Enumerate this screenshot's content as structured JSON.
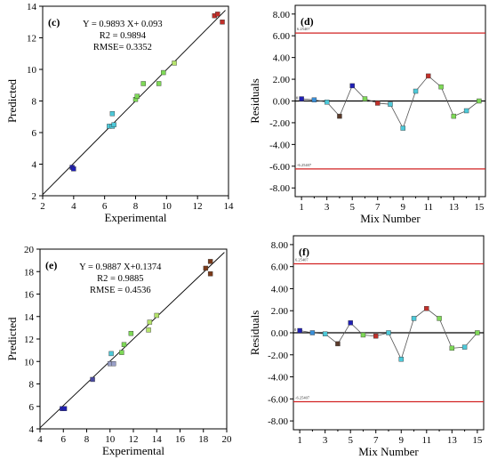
{
  "chart_data": [
    {
      "panel": "(c)",
      "type": "scatter",
      "xlabel": "Experimental",
      "ylabel": "Predicted",
      "xlim": [
        2,
        14
      ],
      "ylim": [
        2,
        14
      ],
      "xticks": [
        "2",
        "4",
        "6",
        "8",
        "10",
        "12",
        "14"
      ],
      "yticks": [
        "2",
        "4",
        "6",
        "8",
        "10",
        "12",
        "14"
      ],
      "annotations": [
        "Y = 0.9893 X+ 0.093",
        "R2 = 0.9894",
        "RMSE= 0.3352"
      ],
      "fit_line": {
        "slope": 0.9893,
        "intercept": 0.093
      },
      "points": [
        {
          "x": 3.9,
          "y": 3.8,
          "color": "#1f1fb4"
        },
        {
          "x": 4.0,
          "y": 3.7,
          "color": "#1f1fb4"
        },
        {
          "x": 6.3,
          "y": 6.4,
          "color": "#4dc9d9"
        },
        {
          "x": 6.5,
          "y": 6.4,
          "color": "#4dc9d9"
        },
        {
          "x": 6.6,
          "y": 6.5,
          "color": "#4dc9d9"
        },
        {
          "x": 6.5,
          "y": 7.2,
          "color": "#4dc9d9"
        },
        {
          "x": 8.0,
          "y": 8.1,
          "color": "#7ed957"
        },
        {
          "x": 8.1,
          "y": 8.3,
          "color": "#7ed957"
        },
        {
          "x": 8.5,
          "y": 9.1,
          "color": "#7ed957"
        },
        {
          "x": 9.5,
          "y": 9.1,
          "color": "#7ed957"
        },
        {
          "x": 9.8,
          "y": 9.8,
          "color": "#7ed957"
        },
        {
          "x": 10.5,
          "y": 10.4,
          "color": "#b5e36b"
        },
        {
          "x": 13.1,
          "y": 13.4,
          "color": "#c0302a"
        },
        {
          "x": 13.3,
          "y": 13.5,
          "color": "#c0302a"
        },
        {
          "x": 13.6,
          "y": 13.0,
          "color": "#c0302a"
        }
      ]
    },
    {
      "panel": "(d)",
      "type": "line",
      "xlabel": "Mix Number",
      "ylabel": "Residuals",
      "xlim": [
        0.5,
        15.5
      ],
      "ylim": [
        -8.8,
        8.8
      ],
      "xticks": [
        "1",
        "3",
        "5",
        "7",
        "9",
        "11",
        "13",
        "15"
      ],
      "yticks": [
        "8.00",
        "6.00",
        "4.00",
        "2.00",
        "0.00",
        "-2.00",
        "-4.00",
        "-6.00",
        "-8.00"
      ],
      "limits": [
        {
          "value": 6.25407,
          "label": "6.25407"
        },
        {
          "value": -6.25407,
          "label": "-6.25407"
        }
      ],
      "zero_label": "0",
      "x": [
        1,
        2,
        3,
        4,
        5,
        6,
        7,
        8,
        9,
        10,
        11,
        12,
        13,
        14,
        15
      ],
      "values": [
        0.2,
        0.1,
        -0.1,
        -1.4,
        1.4,
        0.2,
        -0.2,
        -0.3,
        -2.5,
        0.9,
        2.3,
        1.3,
        -1.4,
        -0.9,
        0.0
      ],
      "colors": [
        "#1f1fb4",
        "#3a8fd8",
        "#4dc9d9",
        "#5a3a2a",
        "#1f1fb4",
        "#7ed957",
        "#c0302a",
        "#4dc9d9",
        "#4dc9d9",
        "#4dc9d9",
        "#c0302a",
        "#7ed957",
        "#7ed957",
        "#4dc9d9",
        "#7ed957"
      ]
    },
    {
      "panel": "(e)",
      "type": "scatter",
      "xlabel": "Experimental",
      "ylabel": "Predicted",
      "xlim": [
        4,
        20
      ],
      "ylim": [
        4,
        20
      ],
      "xticks": [
        "4",
        "6",
        "8",
        "10",
        "12",
        "14",
        "16",
        "18",
        "20"
      ],
      "yticks": [
        "4",
        "6",
        "8",
        "10",
        "12",
        "14",
        "16",
        "18",
        "20"
      ],
      "annotations": [
        "Y = 0.9887 X+0.1374",
        "R2 = 0.9885",
        "RMSE = 0.4536"
      ],
      "fit_line": {
        "slope": 0.9887,
        "intercept": 0.1374
      },
      "points": [
        {
          "x": 5.9,
          "y": 5.8,
          "color": "#1f1fb4"
        },
        {
          "x": 6.1,
          "y": 5.8,
          "color": "#1f1fb4"
        },
        {
          "x": 8.5,
          "y": 8.4,
          "color": "#4a4aa0"
        },
        {
          "x": 10.0,
          "y": 9.8,
          "color": "#9aa0c8"
        },
        {
          "x": 10.3,
          "y": 9.8,
          "color": "#9aa0c8"
        },
        {
          "x": 10.1,
          "y": 10.7,
          "color": "#4dc9d9"
        },
        {
          "x": 11.0,
          "y": 10.8,
          "color": "#7ed957"
        },
        {
          "x": 11.2,
          "y": 11.5,
          "color": "#7ed957"
        },
        {
          "x": 11.8,
          "y": 12.5,
          "color": "#7ed957"
        },
        {
          "x": 13.3,
          "y": 12.8,
          "color": "#b5e36b"
        },
        {
          "x": 13.4,
          "y": 13.5,
          "color": "#b5e36b"
        },
        {
          "x": 14.0,
          "y": 14.1,
          "color": "#b5e36b"
        },
        {
          "x": 18.2,
          "y": 18.3,
          "color": "#7a3a1a"
        },
        {
          "x": 18.6,
          "y": 18.9,
          "color": "#7a3a1a"
        },
        {
          "x": 18.6,
          "y": 17.8,
          "color": "#7a3a1a"
        }
      ]
    },
    {
      "panel": "(f)",
      "type": "line",
      "xlabel": "Mix Number",
      "ylabel": "Residuals",
      "xlim": [
        0.5,
        15.5
      ],
      "ylim": [
        -8.8,
        8.8
      ],
      "xticks": [
        "1",
        "3",
        "5",
        "7",
        "9",
        "11",
        "13",
        "15"
      ],
      "yticks": [
        "8.00",
        "6.00",
        "4.00",
        "2.00",
        "0.00",
        "-2.00",
        "-4.00",
        "-6.00",
        "-8.00"
      ],
      "limits": [
        {
          "value": 6.25407,
          "label": "6.25407"
        },
        {
          "value": -6.25407,
          "label": "-6.25407"
        }
      ],
      "zero_label": "0",
      "x": [
        1,
        2,
        3,
        4,
        5,
        6,
        7,
        8,
        9,
        10,
        11,
        12,
        13,
        14,
        15
      ],
      "values": [
        0.2,
        0.0,
        -0.1,
        -1.0,
        0.9,
        -0.2,
        -0.3,
        0.0,
        -2.4,
        1.3,
        2.2,
        1.3,
        -1.4,
        -1.3,
        0.0
      ],
      "colors": [
        "#1f1fb4",
        "#3a8fd8",
        "#4dc9d9",
        "#5a3a2a",
        "#1f1fb4",
        "#7ed957",
        "#c0302a",
        "#4dc9d9",
        "#4dc9d9",
        "#4dc9d9",
        "#c0302a",
        "#7ed957",
        "#7ed957",
        "#4dc9d9",
        "#7ed957"
      ]
    }
  ]
}
